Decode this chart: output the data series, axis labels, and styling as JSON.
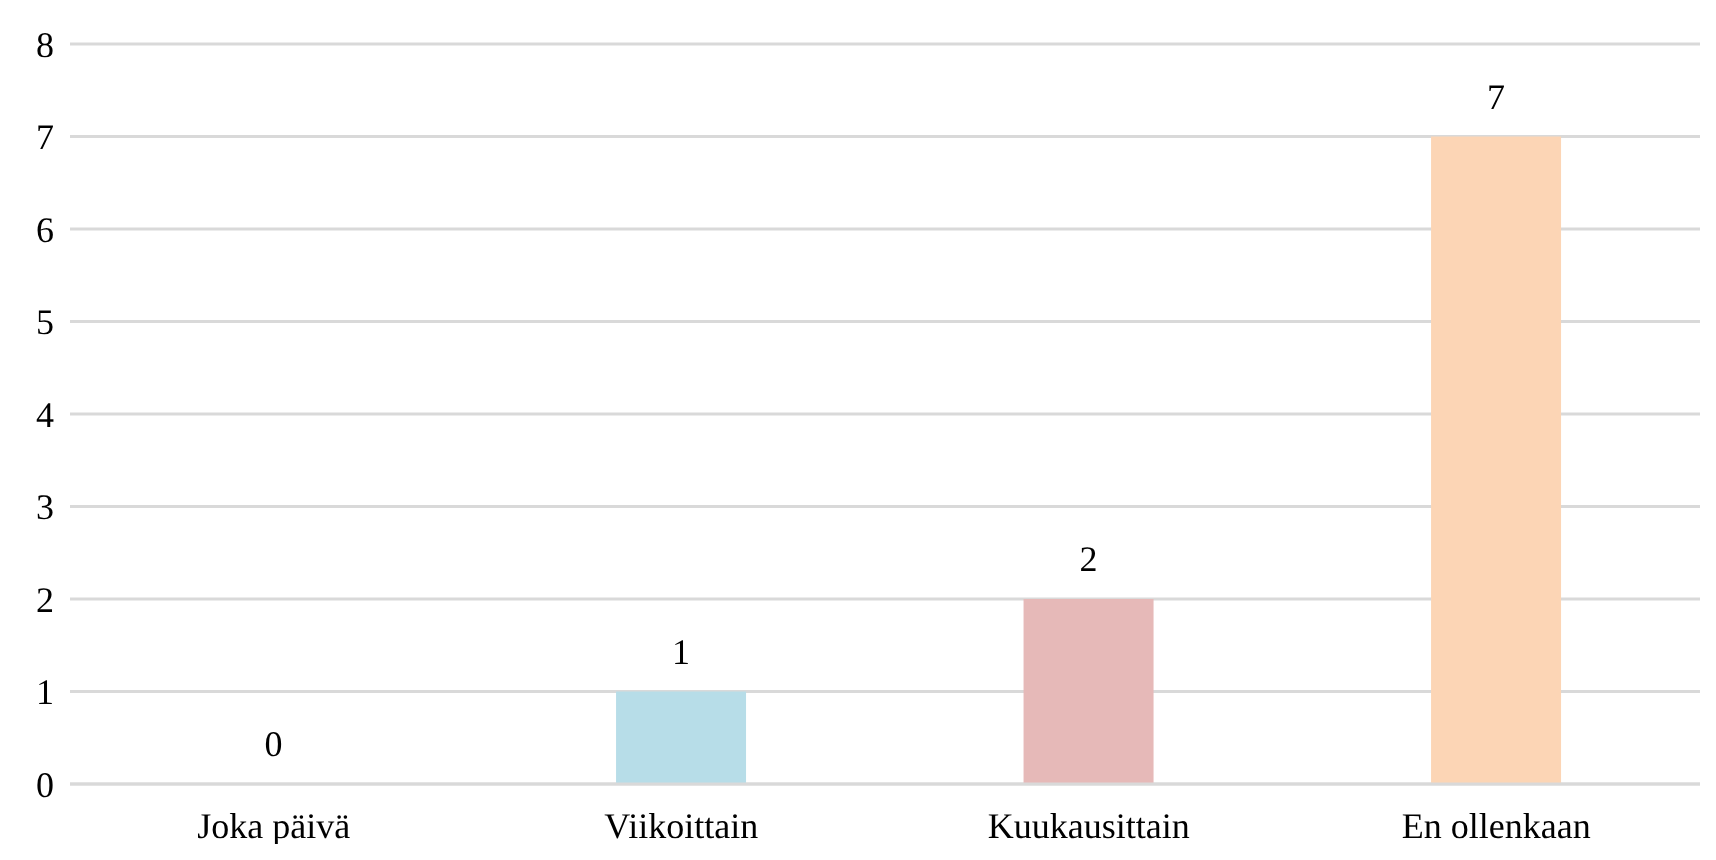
{
  "chart_data": {
    "type": "bar",
    "categories": [
      "Joka päivä",
      "Viikoittain",
      "Kuukausittain",
      "En ollenkaan"
    ],
    "values": [
      0,
      1,
      2,
      7
    ],
    "colors": [
      "#b7dde8",
      "#b7dde8",
      "#e6b9b8",
      "#fcd5b5"
    ],
    "ylim": [
      0,
      8
    ],
    "yticks": [
      0,
      1,
      2,
      3,
      4,
      5,
      6,
      7,
      8
    ],
    "grid": "y",
    "data_labels": true
  }
}
